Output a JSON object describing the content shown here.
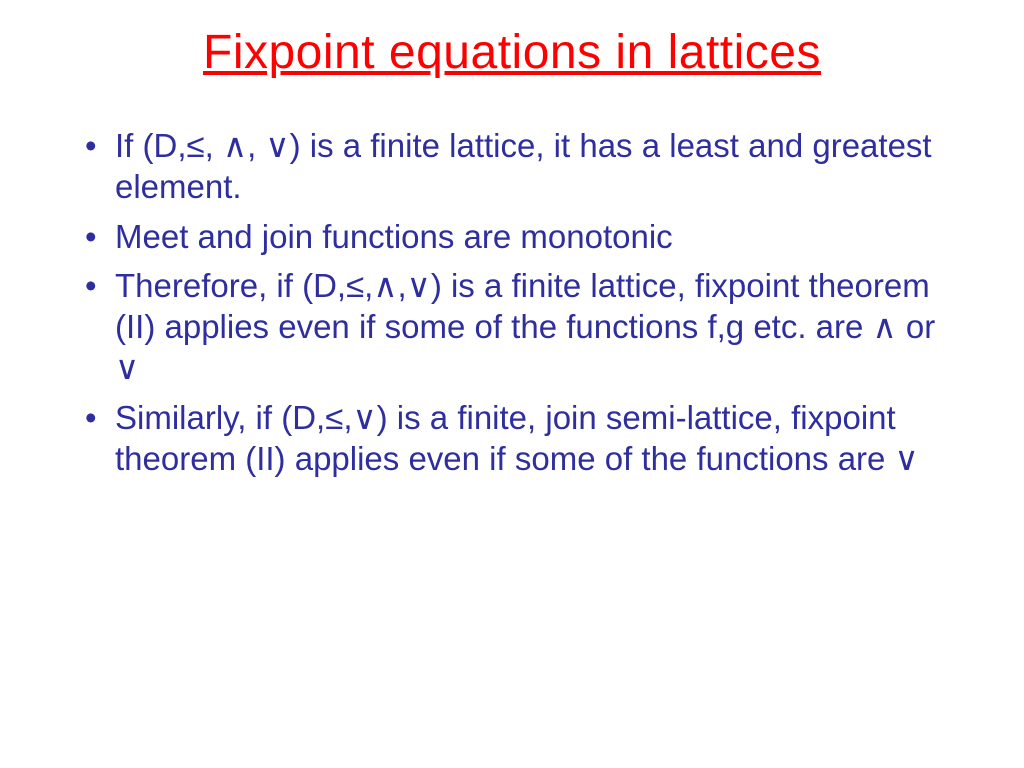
{
  "slide": {
    "title": "Fixpoint equations in lattices",
    "title_color": "#ff0000",
    "title_fontsize": 48,
    "body_color": "#2e2e9e",
    "body_fontsize": 33,
    "background_color": "#ffffff",
    "bullets": [
      "If (D,≤, ∧, ∨) is a finite lattice, it has a least and greatest element.",
      "Meet and join functions are monotonic",
      "Therefore, if (D,≤,∧,∨) is a finite lattice, fixpoint theorem (II) applies even if some of the functions f,g etc. are ∧ or ∨",
      "Similarly, if (D,≤,∨) is a finite, join semi-lattice, fixpoint theorem (II) applies even if some of the functions are ∨"
    ]
  }
}
